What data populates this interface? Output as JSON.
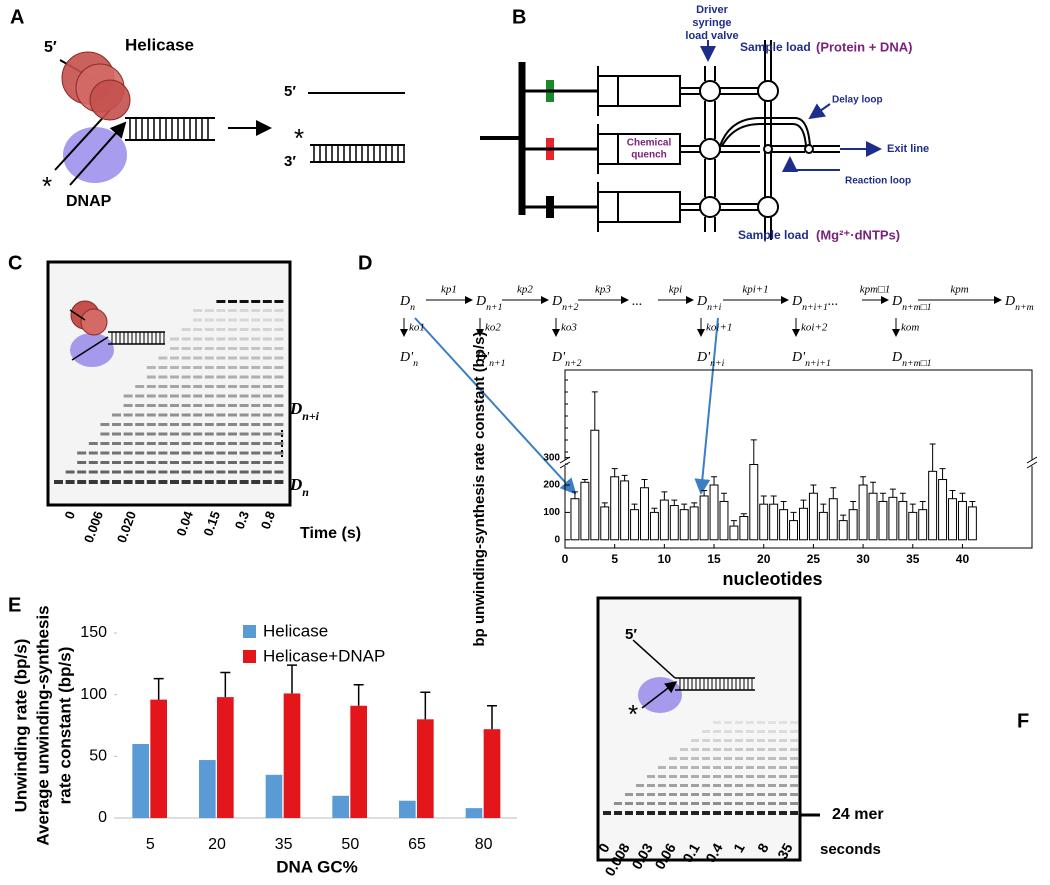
{
  "panels": {
    "a": {
      "label": "A",
      "helicase": "Helicase",
      "strand_5": "5′",
      "star": "*",
      "dnap": "DNAP",
      "product_5": "5′",
      "product_star": "*",
      "product_3": "3′"
    },
    "b": {
      "label": "B",
      "driver": [
        "Driver",
        "syringe",
        "load valve"
      ],
      "sample_load_top": "Sample load",
      "sample_top_contents": "(Protein + DNA)",
      "delay_loop": "Delay loop",
      "chemical_quench": [
        "Chemical",
        "quench"
      ],
      "exit_line": "Exit line",
      "reaction_loop": "Reaction loop",
      "sample_load_bottom": "Sample load",
      "sample_bottom_contents": "(Mg²⁺·dNTPs)"
    },
    "c": {
      "label": "C",
      "lanes": [
        "0",
        "0.006",
        "0.020",
        "0.04",
        "0.15",
        "0.3",
        "0.8"
      ],
      "axis_label": "Time (s)",
      "upper_band": {
        "base": "D",
        "sub": "n+i"
      },
      "lower_band": {
        "base": "D",
        "sub": "n"
      }
    },
    "d": {
      "label": "D",
      "scheme": {
        "nodes": [
          {
            "base": "D",
            "sub": "n"
          },
          {
            "base": "D",
            "sub": "n+1"
          },
          {
            "base": "D",
            "sub": "n+2"
          },
          {
            "base": "..."
          },
          {
            "base": "D",
            "sub": "n+i"
          },
          {
            "base": "D",
            "sub": "n+i+1",
            "suffix": "..."
          },
          {
            "base": "D",
            "sub": "n+m□1"
          },
          {
            "base": "D",
            "sub": "n+m"
          }
        ],
        "forward": [
          "kp1",
          "kp2",
          "kp3",
          "kpi",
          "kpi+1",
          "kpm□1",
          "kpm"
        ],
        "off": [
          "ko1",
          "ko2",
          "ko3",
          "koi+1",
          "koi+2",
          "kom"
        ],
        "off_products": [
          {
            "base": "D'",
            "sub": "n"
          },
          {
            "base": "D'",
            "sub": "n+1"
          },
          {
            "base": "D'",
            "sub": "n+2"
          },
          {
            "base": "D'",
            "sub": "n+i"
          },
          {
            "base": "D'",
            "sub": "n+i+1"
          },
          {
            "base": "D",
            "sub": "n+m□1"
          }
        ]
      }
    },
    "e": {
      "label": "E"
    },
    "f": {
      "label": "F",
      "strand_5": "5′",
      "star": "*",
      "lanes": [
        "0",
        "0.008",
        "0.03",
        "0.06",
        "0.1",
        "0.4",
        "1",
        "8",
        "35"
      ],
      "axis_label": "seconds",
      "marker": "24 mer"
    }
  },
  "chart_data": [
    {
      "type": "bar",
      "xlabel": "nucleotides",
      "ylabel": "bp unwinding-synthesis rate constant (bp/s)",
      "x": [
        1,
        2,
        3,
        4,
        5,
        6,
        7,
        8,
        9,
        10,
        11,
        12,
        13,
        14,
        15,
        16,
        17,
        18,
        19,
        20,
        21,
        22,
        23,
        24,
        25,
        26,
        27,
        28,
        29,
        30,
        31,
        32,
        33,
        34,
        35,
        36,
        37,
        38,
        39,
        40,
        41
      ],
      "values": [
        150,
        210,
        400,
        120,
        230,
        215,
        110,
        190,
        100,
        145,
        125,
        110,
        120,
        160,
        200,
        140,
        50,
        85,
        275,
        130,
        130,
        110,
        70,
        115,
        170,
        100,
        150,
        70,
        110,
        200,
        170,
        140,
        155,
        140,
        100,
        110,
        250,
        220,
        150,
        140,
        120
      ],
      "errors": [
        25,
        10,
        140,
        15,
        30,
        20,
        20,
        30,
        15,
        30,
        20,
        20,
        15,
        20,
        30,
        30,
        20,
        10,
        90,
        30,
        30,
        30,
        30,
        30,
        30,
        30,
        40,
        20,
        30,
        30,
        40,
        30,
        30,
        30,
        30,
        30,
        100,
        40,
        30,
        30,
        20
      ],
      "xlim": [
        0,
        47
      ],
      "xticks": [
        0,
        5,
        10,
        15,
        20,
        25,
        30,
        35,
        40
      ],
      "ylim": [
        -30,
        620
      ],
      "yticks": [
        0,
        100,
        200,
        300
      ],
      "color": "#ffffff",
      "edgecolor": "#000000"
    },
    {
      "type": "grouped_bar",
      "xlabel": "DNA GC%",
      "ylabel": [
        "Unwinding rate (bp/s)",
        "Average unwinding-synthesis",
        "rate constant (bp/s)"
      ],
      "categories": [
        "5",
        "20",
        "35",
        "50",
        "65",
        "80"
      ],
      "series": [
        {
          "name": "Helicase",
          "color": "#5b9bd5",
          "values": [
            60,
            47,
            35,
            18,
            14,
            8
          ]
        },
        {
          "name": "Helicase+DNAP",
          "color": "#e3171b",
          "values": [
            96,
            98,
            101,
            91,
            80,
            72
          ],
          "errors": [
            17,
            20,
            23,
            17,
            22,
            19
          ]
        }
      ],
      "ylim": [
        0,
        150
      ],
      "yticks": [
        0,
        50,
        100,
        150
      ],
      "legend": "top"
    }
  ]
}
